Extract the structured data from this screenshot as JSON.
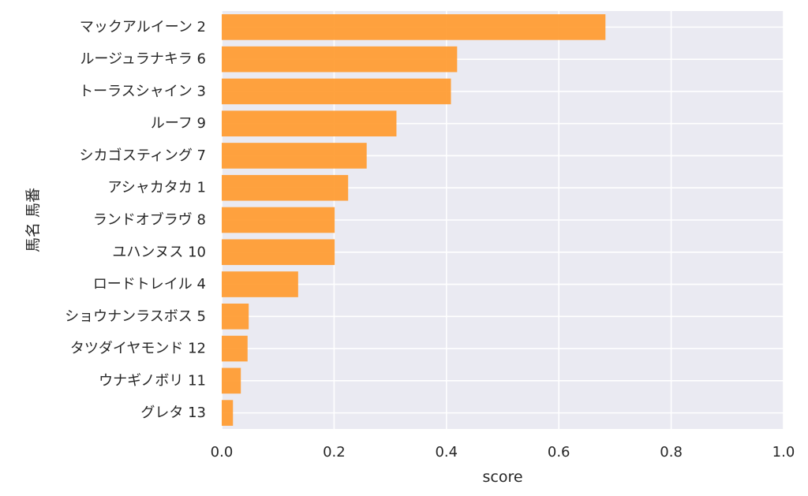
{
  "chart_data": {
    "type": "bar",
    "orientation": "horizontal",
    "categories": [
      "マックアルイーン 2",
      "ルージュラナキラ 6",
      "トーラスシャイン 3",
      "ルーフ 9",
      "シカゴスティング 7",
      "アシャカタカ 1",
      "ランドオブラヴ 8",
      "ユハンヌス 10",
      "ロードトレイル 4",
      "ショウナンラスボス 5",
      "タツダイヤモンド 12",
      "ウナギノボリ 11",
      "グレタ 13"
    ],
    "values": [
      0.683,
      0.419,
      0.408,
      0.311,
      0.258,
      0.225,
      0.201,
      0.201,
      0.136,
      0.048,
      0.046,
      0.034,
      0.02
    ],
    "xlabel": "score",
    "ylabel": "馬名 馬番",
    "xlim": [
      0,
      1.0
    ],
    "xticks": [
      "0.0",
      "0.2",
      "0.4",
      "0.6",
      "0.8",
      "1.0"
    ],
    "grid": true,
    "colors": {
      "bar": "#ff9a2f",
      "plot_background": "#eaeaf2",
      "grid": "#ffffff",
      "text": "#262626"
    }
  }
}
